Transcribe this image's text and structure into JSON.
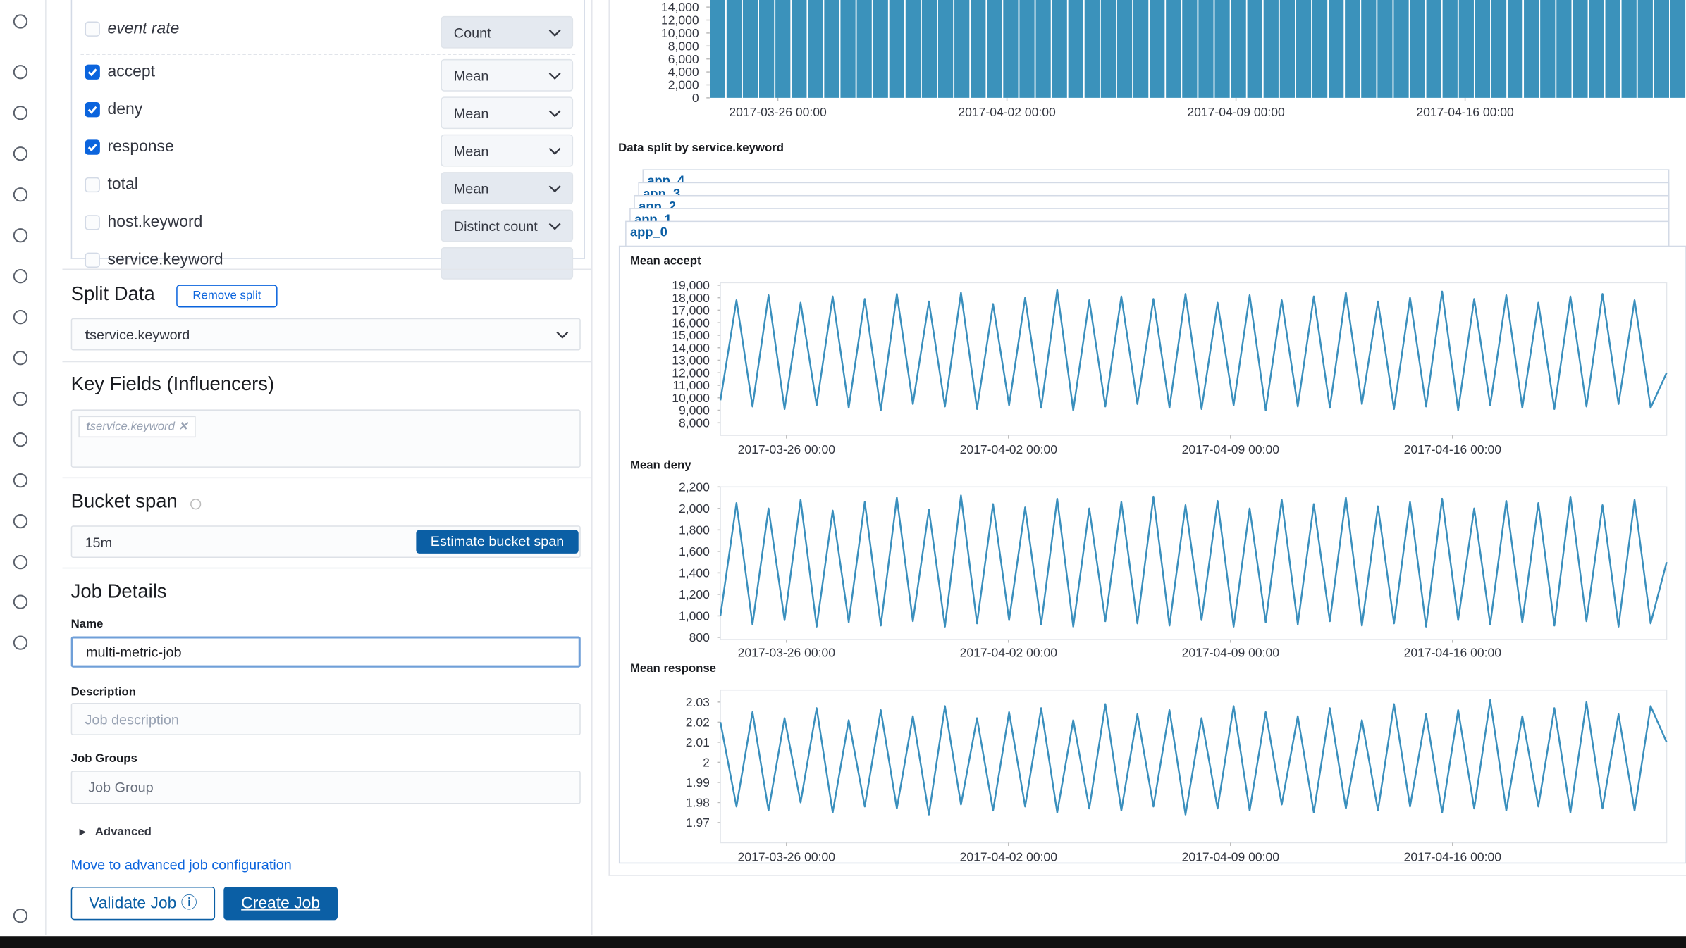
{
  "fields": [
    {
      "label": "event rate",
      "checked": false,
      "function": "Count"
    },
    {
      "label": "accept",
      "checked": true,
      "function": "Mean"
    },
    {
      "label": "deny",
      "checked": true,
      "function": "Mean"
    },
    {
      "label": "response",
      "checked": true,
      "function": "Mean"
    },
    {
      "label": "total",
      "checked": false,
      "function": "Mean"
    },
    {
      "label": "host.keyword",
      "checked": false,
      "function": "Distinct count"
    },
    {
      "label": "service.keyword",
      "checked": false
    }
  ],
  "split_data": {
    "title": "Split Data",
    "button": "Remove split",
    "field_type": "t",
    "field": "service.keyword"
  },
  "key_fields": {
    "title": "Key Fields (Influencers)",
    "chip_type": "t",
    "chip": "service.keyword"
  },
  "bucket_span": {
    "title": "Bucket span",
    "value": "15m",
    "button": "Estimate bucket span"
  },
  "job_details": {
    "title": "Job Details",
    "name_label": "Name",
    "name_value": "multi-metric-job",
    "description_label": "Description",
    "description_placeholder": "Job description",
    "groups_label": "Job Groups",
    "groups_placeholder": "Job Group",
    "advanced": "Advanced",
    "advanced_link": "Move to advanced job configuration",
    "validate": "Validate Job",
    "create": "Create Job"
  },
  "split_label": "Data split by service.keyword",
  "split_cards": [
    "app_4",
    "app_3",
    "app_2",
    "app_1",
    "app_0"
  ],
  "chart_data": [
    {
      "type": "bar",
      "color": "#3b92bb",
      "xlim": [
        "2017-03-23 22:00",
        "2017-04-22 18:00"
      ],
      "xticks": [
        "2017-03-26 00:00",
        "2017-04-02 00:00",
        "2017-04-09 00:00",
        "2017-04-16 00:00"
      ],
      "ylim": [
        0,
        15100
      ],
      "yticks": [
        0,
        {
          "value": 2000,
          "label": "2,000"
        },
        {
          "value": 4000,
          "label": "4,000"
        },
        {
          "value": 6000,
          "label": "6,000"
        },
        {
          "value": 8000,
          "label": "8,000"
        },
        {
          "value": 10000,
          "label": "10,000"
        },
        {
          "value": 12000,
          "label": "12,000"
        },
        {
          "value": 14000,
          "label": "14,000"
        }
      ],
      "values": [
        15100,
        15100,
        15100,
        15100,
        15100,
        15100,
        15100,
        15100,
        15100,
        15100,
        15100,
        15100,
        15100,
        15100,
        15100,
        15100,
        15100,
        15100,
        15100,
        15100,
        15100,
        15100,
        15100,
        15100,
        15100,
        15100,
        15100,
        15100,
        15100,
        15100,
        15100,
        15100,
        15100,
        15100,
        15100,
        15100,
        15100,
        15100,
        15100,
        15100,
        15100,
        15100,
        15100,
        15100,
        15100,
        15100,
        15100,
        15100,
        15100,
        15100,
        15100,
        15100,
        15100,
        15100,
        15100,
        15100,
        15100,
        15100,
        15100,
        15100
      ]
    },
    {
      "type": "line",
      "title": "Mean accept",
      "xlim": [
        "2017-03-23 22:00",
        "2017-04-22 18:00"
      ],
      "xticks": [
        "2017-03-26 00:00",
        "2017-04-02 00:00",
        "2017-04-09 00:00",
        "2017-04-16 00:00"
      ],
      "ylim": [
        7000,
        19200
      ],
      "yticks": [
        {
          "value": 8000,
          "label": "8,000"
        },
        {
          "value": 9000,
          "label": "9,000"
        },
        {
          "value": 10000,
          "label": "10,000"
        },
        {
          "value": 11000,
          "label": "11,000"
        },
        {
          "value": 12000,
          "label": "12,000"
        },
        {
          "value": 13000,
          "label": "13,000"
        },
        {
          "value": 14000,
          "label": "14,000"
        },
        {
          "value": 15000,
          "label": "15,000"
        },
        {
          "value": 16000,
          "label": "16,000"
        },
        {
          "value": 17000,
          "label": "17,000"
        },
        {
          "value": 18000,
          "label": "18,000"
        },
        {
          "value": 19000,
          "label": "19,000"
        }
      ],
      "series": [
        {
          "name": "accept",
          "color": "#3a8fbd",
          "values": [
            9800,
            17800,
            9300,
            18200,
            9100,
            17600,
            9400,
            18100,
            9200,
            17900,
            9000,
            18300,
            9500,
            17700,
            9300,
            18400,
            9100,
            17500,
            9400,
            18000,
            9200,
            18600,
            9000,
            17800,
            9300,
            18100,
            9500,
            17900,
            9200,
            18300,
            9100,
            17600,
            9400,
            18200,
            9000,
            17800,
            9300,
            18100,
            9200,
            18400,
            9500,
            17700,
            9100,
            18000,
            9300,
            18500,
            9000,
            17900,
            9400,
            18200,
            9200,
            17600,
            9100,
            18100,
            9300,
            18300,
            9500,
            17800,
            9200,
            12000
          ]
        }
      ]
    },
    {
      "type": "line",
      "title": "Mean deny",
      "xlim": [
        "2017-03-23 22:00",
        "2017-04-22 18:00"
      ],
      "xticks": [
        "2017-03-26 00:00",
        "2017-04-02 00:00",
        "2017-04-09 00:00",
        "2017-04-16 00:00"
      ],
      "ylim": [
        780,
        2200
      ],
      "yticks": [
        800,
        {
          "value": 1000,
          "label": "1,000"
        },
        {
          "value": 1200,
          "label": "1,200"
        },
        {
          "value": 1400,
          "label": "1,400"
        },
        {
          "value": 1600,
          "label": "1,600"
        },
        {
          "value": 1800,
          "label": "1,800"
        },
        {
          "value": 2000,
          "label": "2,000"
        },
        {
          "value": 2200,
          "label": "2,200"
        }
      ],
      "series": [
        {
          "name": "deny",
          "color": "#3a8fbd",
          "values": [
            1000,
            2050,
            920,
            2000,
            960,
            2080,
            900,
            1980,
            940,
            2060,
            910,
            2100,
            950,
            1990,
            900,
            2120,
            930,
            2040,
            960,
            2010,
            920,
            2090,
            900,
            2000,
            950,
            2060,
            930,
            2110,
            910,
            2030,
            960,
            2070,
            900,
            2000,
            940,
            2080,
            920,
            2040,
            950,
            2100,
            910,
            2020,
            930,
            2060,
            900,
            2090,
            960,
            2000,
            920,
            2070,
            940,
            2050,
            910,
            2110,
            950,
            2030,
            900,
            2080,
            930,
            1500
          ]
        }
      ]
    },
    {
      "type": "line",
      "title": "Mean response",
      "xlim": [
        "2017-03-23 22:00",
        "2017-04-22 18:00"
      ],
      "xticks": [
        "2017-03-26 00:00",
        "2017-04-02 00:00",
        "2017-04-09 00:00",
        "2017-04-16 00:00"
      ],
      "ylim": [
        1.96,
        2.036
      ],
      "yticks": [
        1.97,
        1.98,
        1.99,
        2,
        2.01,
        2.02,
        2.03
      ],
      "series": [
        {
          "name": "response",
          "color": "#3a8fbd",
          "values": [
            2.02,
            1.978,
            2.025,
            1.976,
            2.022,
            1.98,
            2.027,
            1.975,
            2.021,
            1.978,
            2.026,
            1.977,
            2.023,
            1.974,
            2.028,
            1.979,
            2.022,
            1.976,
            2.025,
            1.978,
            2.027,
            1.975,
            2.021,
            1.977,
            2.029,
            1.976,
            2.024,
            1.978,
            2.026,
            1.974,
            2.022,
            1.977,
            2.028,
            1.976,
            2.025,
            1.979,
            2.023,
            1.975,
            2.027,
            1.977,
            2.021,
            1.976,
            2.029,
            1.978,
            2.024,
            1.975,
            2.026,
            1.977,
            2.031,
            1.976,
            2.023,
            1.978,
            2.027,
            1.975,
            2.03,
            1.977,
            2.024,
            1.976,
            2.028,
            2.01
          ]
        }
      ]
    }
  ]
}
